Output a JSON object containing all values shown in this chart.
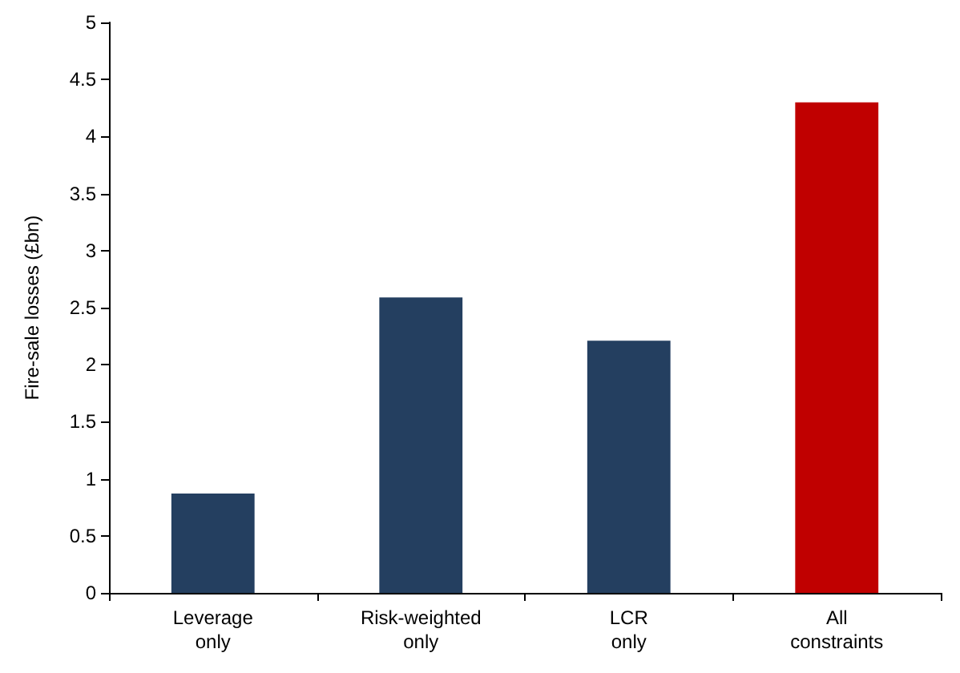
{
  "chart_data": {
    "type": "bar",
    "ylabel": "Fire-sale losses (£bn)",
    "categories": [
      "Leverage only",
      "Risk-weighted only",
      "LCR only",
      "All constraints"
    ],
    "values": [
      0.87,
      2.59,
      2.21,
      4.3
    ],
    "colors": [
      "#243f60",
      "#243f60",
      "#243f60",
      "#c00000"
    ],
    "ylim": [
      0,
      5
    ],
    "yticks": [
      0,
      0.5,
      1,
      1.5,
      2,
      2.5,
      3,
      3.5,
      4,
      4.5,
      5
    ]
  }
}
